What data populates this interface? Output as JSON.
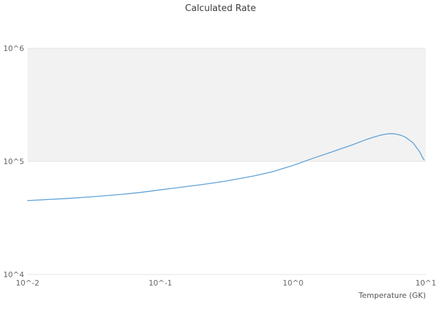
{
  "chart_data": {
    "type": "line",
    "title": "Calculated Rate",
    "xlabel": "Temperature (GK)",
    "ylabel": "",
    "xscale": "log",
    "yscale": "log",
    "xlim": [
      0.01,
      10
    ],
    "ylim": [
      10000,
      1000000
    ],
    "grid": true,
    "legend": "none",
    "x_tick_values": [
      0.01,
      0.1,
      1,
      10
    ],
    "x_tick_labels": [
      "10^-2",
      "10^-1",
      "10^0",
      "10^1"
    ],
    "y_tick_values": [
      10000,
      100000,
      1000000
    ],
    "y_tick_labels": [
      "10^4",
      "10^5",
      "10^6"
    ],
    "x": [
      0.01,
      0.02,
      0.03,
      0.05,
      0.07,
      0.1,
      0.15,
      0.2,
      0.3,
      0.5,
      0.7,
      1.0,
      1.4,
      2.0,
      2.8,
      3.5,
      4.0,
      4.5,
      5.0,
      5.5,
      6.0,
      6.5,
      7.0,
      8.0,
      9.0,
      9.5,
      9.7
    ],
    "y": [
      45000,
      47000,
      48500,
      51000,
      53000,
      56000,
      59500,
      62000,
      66500,
      74000,
      81000,
      92000,
      106000,
      122000,
      140000,
      155000,
      163000,
      170000,
      174000,
      176000,
      174000,
      170000,
      164000,
      146000,
      121000,
      107000,
      103000
    ],
    "series_name": "calculated-rate",
    "line_color": "#5b9fd6",
    "band": {
      "from": 100000,
      "to": 1000000,
      "color": "#f2f2f2"
    },
    "grid_color": "#e3e3e3"
  }
}
